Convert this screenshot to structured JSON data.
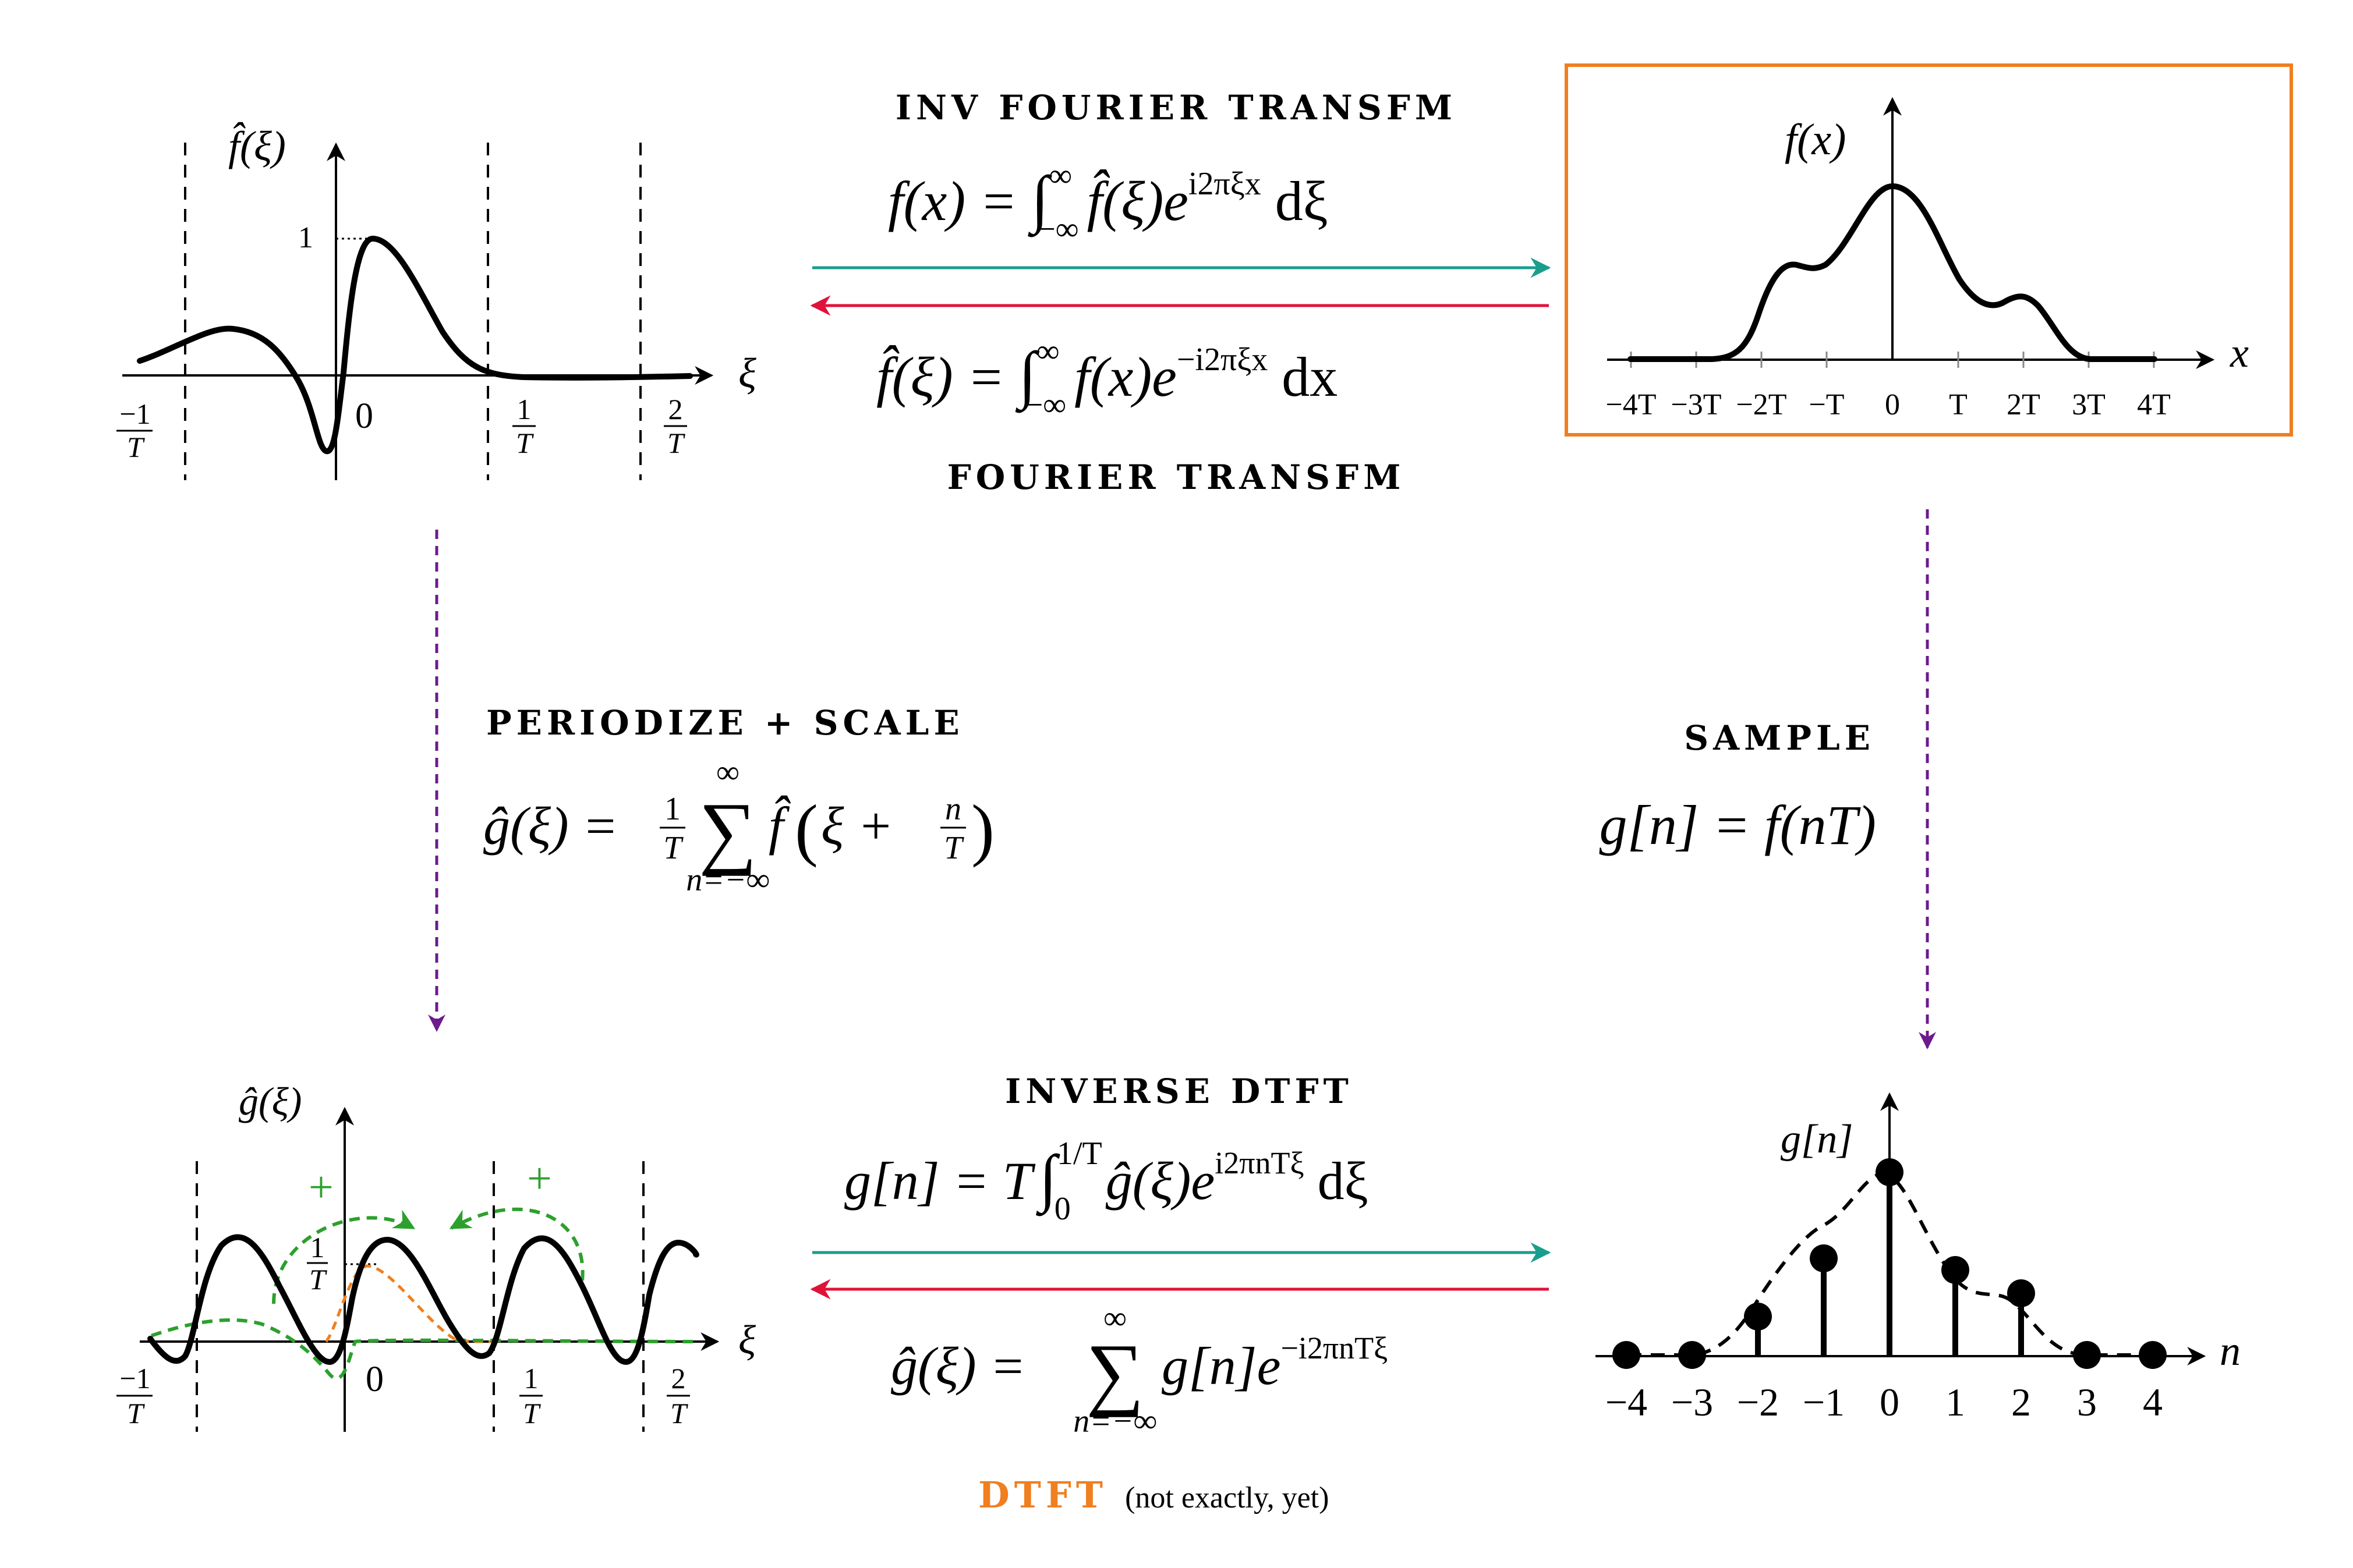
{
  "colors": {
    "ink": "#000000",
    "forward_arrow": "#1a9e8c",
    "inverse_arrow": "#e0123a",
    "frame_accent": "#f07f1f",
    "transition": "#6c1a8c",
    "periodized_copy": "#2ca02c",
    "dtft_label": "#f07f1f"
  },
  "top_left_plot": {
    "y_label": "f̂(ξ)",
    "x_label": "ξ",
    "y_tick": "1",
    "origin_label": "0",
    "x_ticks": [
      {
        "num": "−1",
        "den": "T"
      },
      {
        "num": "1",
        "den": "T"
      },
      {
        "num": "2",
        "den": "T"
      }
    ]
  },
  "inverse_fourier": {
    "title": "INV FOURIER TRANSFM",
    "formula": {
      "lhs": "f(x) = ",
      "integral": "∫",
      "upper": "∞",
      "lower": "−∞",
      "integrand": "f̂(ξ)e",
      "exponent": "i2πξx",
      "differential": " dξ"
    }
  },
  "fourier": {
    "title": "FOURIER TRANSFM",
    "formula": {
      "lhs": "f̂(ξ) = ",
      "integral": "∫",
      "upper": "∞",
      "lower": "−∞",
      "integrand": "f(x)e",
      "exponent": "−i2πξx",
      "differential": " dx"
    }
  },
  "top_right_plot": {
    "y_label": "f(x)",
    "x_label": "x",
    "x_ticks": [
      "−4T",
      "−3T",
      "−2T",
      "−T",
      "0",
      "T",
      "2T",
      "3T",
      "4T"
    ]
  },
  "periodize": {
    "title": "PERIODIZE + SCALE",
    "formula": {
      "lhs": "ĝ(ξ) = ",
      "frac_num": "1",
      "frac_den": "T",
      "sum_symbol": "∑",
      "sum_upper": "∞",
      "sum_lower": "n=−∞",
      "term_start": "f̂",
      "term_inner_start": "ξ + ",
      "inner_frac_num": "n",
      "inner_frac_den": "T"
    }
  },
  "sample": {
    "title": "SAMPLE",
    "formula": "g[n] = f(nT)"
  },
  "bottom_left_plot": {
    "y_label": "ĝ(ξ)",
    "x_label": "ξ",
    "origin_label": "0",
    "y_tick": {
      "num": "1",
      "den": "T"
    },
    "plus_signs": [
      "+",
      "+"
    ],
    "x_ticks": [
      {
        "num": "−1",
        "den": "T"
      },
      {
        "num": "1",
        "den": "T"
      },
      {
        "num": "2",
        "den": "T"
      }
    ]
  },
  "inverse_dtft": {
    "title": "INVERSE DTFT",
    "formula": {
      "lhs": "g[n] = T",
      "integral": "∫",
      "upper": "1/T",
      "lower": "0",
      "integrand": "ĝ(ξ)e",
      "exponent": "i2πnTξ",
      "differential": " dξ"
    }
  },
  "dtft": {
    "formula": {
      "lhs": "ĝ(ξ) = ",
      "sum_symbol": "∑",
      "sum_upper": "∞",
      "sum_lower": "n=−∞",
      "integrand": "g[n]e",
      "exponent": "−i2πnTξ"
    },
    "label": "DTFT",
    "note": "(not exactly, yet)"
  },
  "bottom_right_plot": {
    "y_label": "g[n]",
    "x_label": "n",
    "stems": [
      {
        "n": -4,
        "value": 0.0
      },
      {
        "n": -3,
        "value": 0.0
      },
      {
        "n": -2,
        "value": 0.17
      },
      {
        "n": -1,
        "value": 0.42
      },
      {
        "n": 0,
        "value": 0.79
      },
      {
        "n": 1,
        "value": 0.37
      },
      {
        "n": 2,
        "value": 0.27
      },
      {
        "n": 3,
        "value": 0.0
      },
      {
        "n": 4,
        "value": 0.0
      }
    ],
    "x_ticks": [
      "−4",
      "−3",
      "−2",
      "−1",
      "0",
      "1",
      "2",
      "3",
      "4"
    ]
  }
}
